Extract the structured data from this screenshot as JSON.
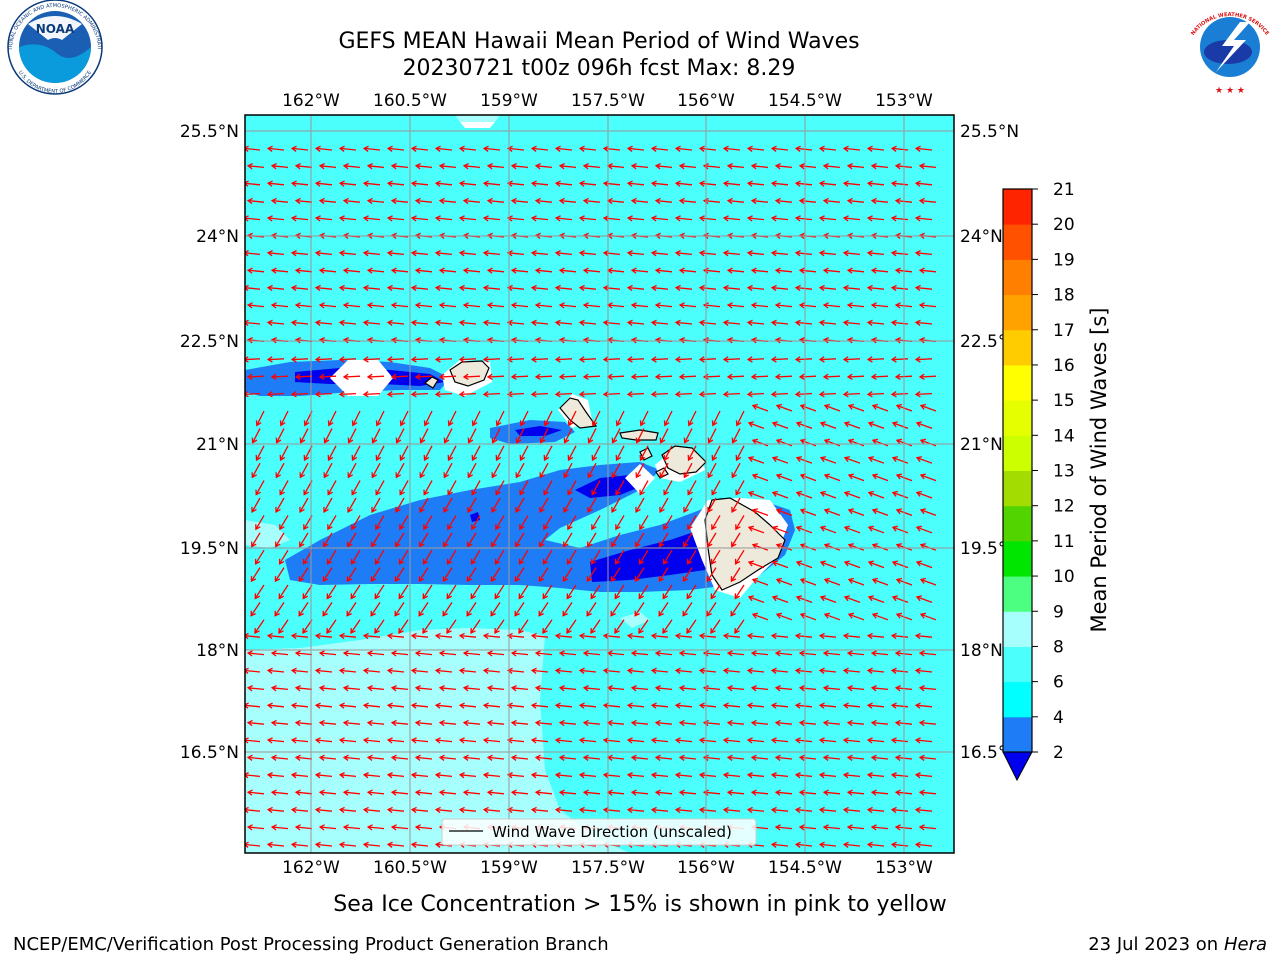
{
  "title": {
    "line1": "GEFS MEAN Hawaii Mean Period of Wind Waves",
    "line2": "20230721 t00z 096h fcst   Max: 8.29"
  },
  "map": {
    "x_ticks": [
      "162°W",
      "160.5°W",
      "159°W",
      "157.5°W",
      "156°W",
      "154.5°W",
      "153°W"
    ],
    "y_ticks": [
      "25.5°N",
      "24°N",
      "22.5°N",
      "21°N",
      "19.5°N",
      "18°N",
      "16.5°N"
    ],
    "legend_label": "Wind Wave Direction (unscaled)",
    "arrow_color": "#ff0000",
    "land_color": "#eeeadb",
    "colors": {
      "cyan_8_9": "#a6fffd",
      "cyan_6_8": "#4afffc",
      "blue_4_6": "#1e7cf7",
      "blue_2_4": "#0000ee"
    }
  },
  "colorbar": {
    "label": "Mean Period of Wind Waves [s]",
    "ticks": [
      "2",
      "4",
      "6",
      "8",
      "9",
      "10",
      "11",
      "12",
      "13",
      "14",
      "15",
      "16",
      "17",
      "18",
      "19",
      "20",
      "21"
    ],
    "colors": [
      "#0000ee",
      "#1e7cf7",
      "#00ffff",
      "#4afffc",
      "#a6fffd",
      "#4dff80",
      "#00e600",
      "#52d400",
      "#a3dc00",
      "#ccff00",
      "#e5ff00",
      "#ffff00",
      "#ffcc00",
      "#ffa200",
      "#ff8000",
      "#ff5100",
      "#ff2400",
      "#ff0000"
    ]
  },
  "caption": "Sea Ice Concentration > 15% is shown in pink to yellow",
  "footer": {
    "left": "NCEP/EMC/Verification Post Processing Product Generation Branch",
    "right_prefix": "23 Jul 2023 on ",
    "right_host": "Hera"
  },
  "logos": {
    "noaa_center": "NOAA",
    "noaa_ring_top": "NATIONAL OCEANIC AND ATMOSPHERIC ADMINISTRATION",
    "noaa_ring_bottom": "U.S. DEPARTMENT OF COMMERCE",
    "nws_ring_top": "NATIONAL WEATHER SERVICE"
  }
}
